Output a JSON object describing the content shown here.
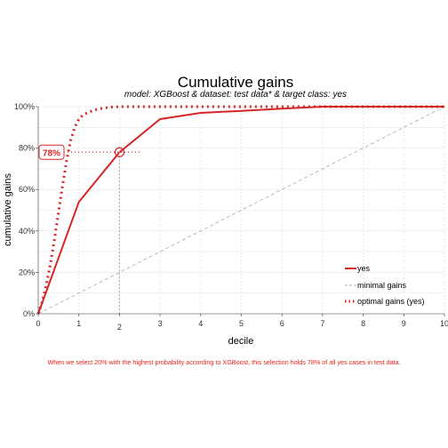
{
  "chart_data": {
    "type": "line",
    "title": "Cumulative gains",
    "subtitle": "model: XGBoost  &  dataset: test data*  &  target class: yes",
    "xlabel": "decile",
    "ylabel": "cumulative gains",
    "xlim": [
      0,
      10
    ],
    "ylim": [
      0,
      100
    ],
    "x_ticks": [
      "0",
      "1",
      "2",
      "3",
      "4",
      "5",
      "6",
      "7",
      "8",
      "9",
      "10"
    ],
    "y_ticks": [
      "0%",
      "20%",
      "40%",
      "60%",
      "80%",
      "100%"
    ],
    "grid": true,
    "legend_position": "bottom-right",
    "colors": {
      "model": "#d62728",
      "minimal": "#aaaaaa",
      "optimal": "#d62728",
      "caption": "#e8211a"
    },
    "series": [
      {
        "name": "yes",
        "style": "solid",
        "x": [
          0,
          1,
          2,
          3,
          4,
          5,
          6,
          7,
          8,
          9,
          10
        ],
        "y": [
          0,
          54,
          78,
          94,
          97,
          98,
          99,
          100,
          100,
          100,
          100
        ]
      },
      {
        "name": "minimal gains",
        "style": "dashed",
        "x": [
          0,
          10
        ],
        "y": [
          0,
          100
        ]
      },
      {
        "name": "optimal gains (yes)",
        "style": "dotted",
        "x": [
          0,
          0.1,
          0.2,
          0.3,
          0.4,
          0.5,
          0.6,
          0.7,
          0.8,
          0.9,
          1.0,
          1.1,
          1.2,
          1.4,
          1.6,
          1.8,
          2.0,
          2.5,
          3,
          4,
          5,
          6,
          7,
          8,
          9,
          10
        ],
        "y": [
          0,
          6,
          14,
          24,
          36,
          49,
          62,
          74,
          84,
          90,
          94,
          96,
          97,
          98.5,
          99.3,
          99.8,
          100,
          100,
          100,
          100,
          100,
          100,
          100,
          100,
          100,
          100
        ]
      }
    ],
    "highlight": {
      "x": 2,
      "y": 78,
      "label": "78%",
      "x_tick_label": "2"
    },
    "caption": "When we select 20% with the highest probability according to XGBoost, this selection holds 78% of all yes cases in test data."
  }
}
